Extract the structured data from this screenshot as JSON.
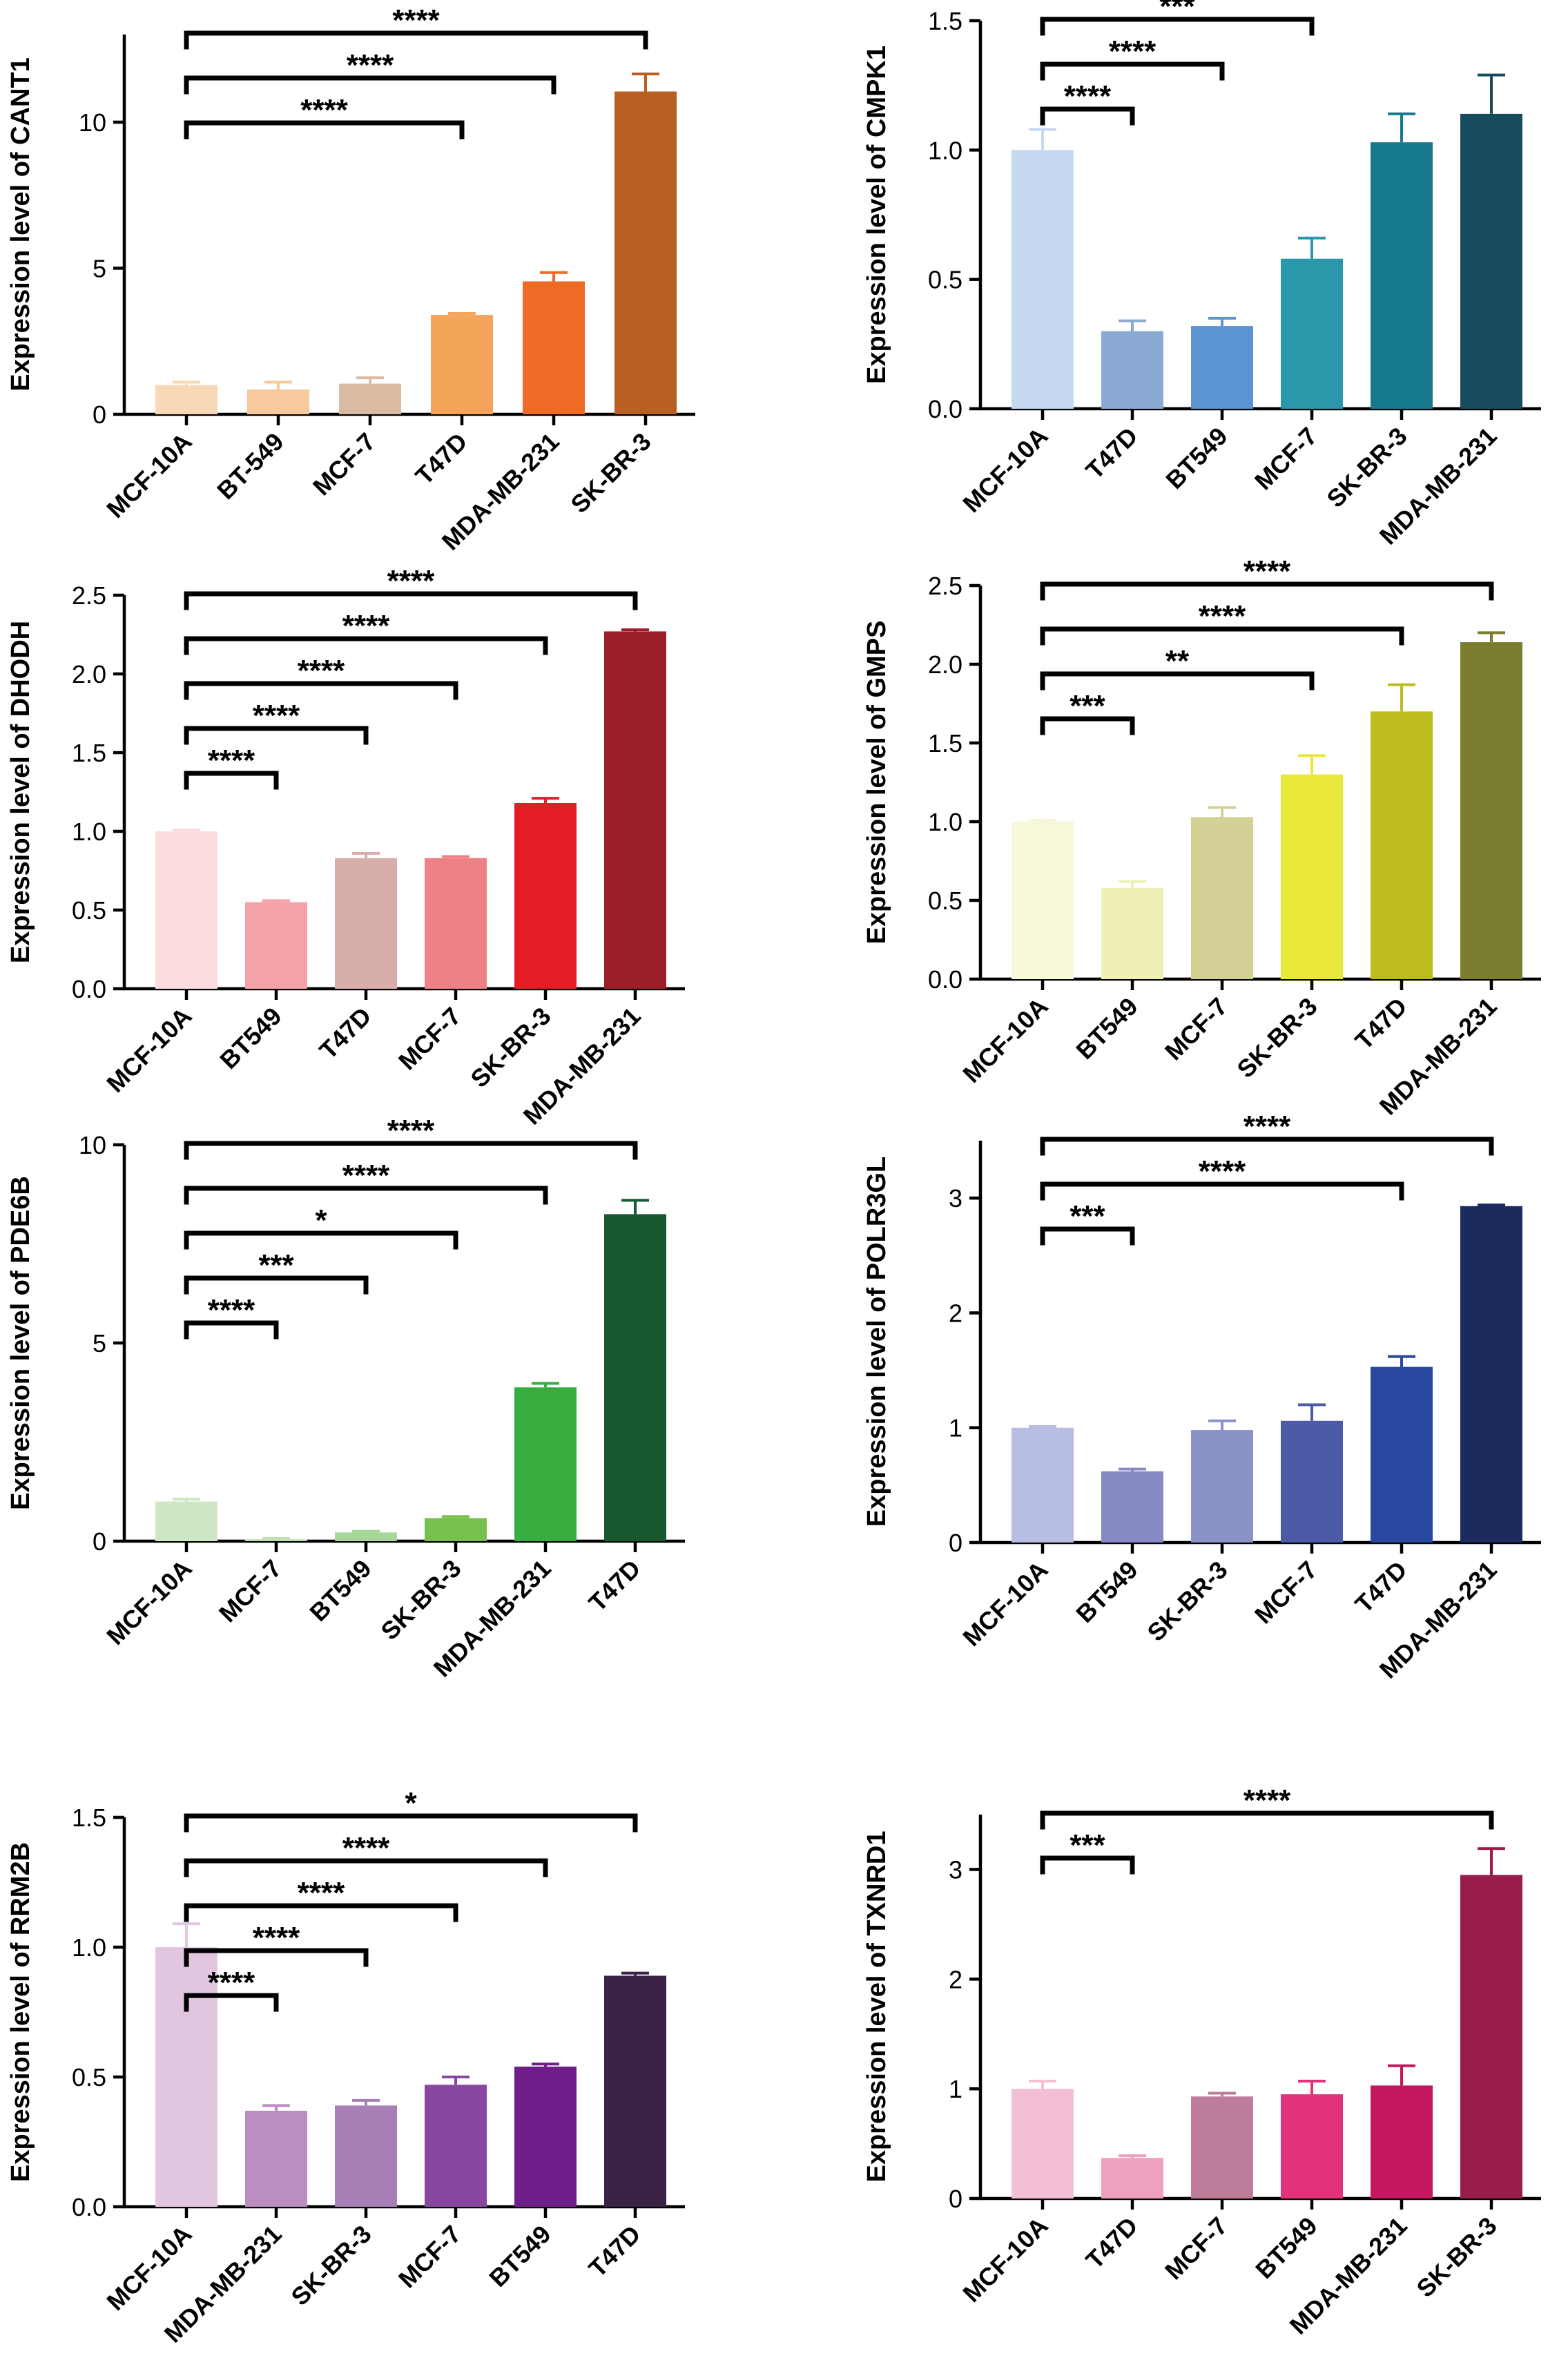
{
  "chart_data": [
    {
      "type": "bar",
      "ylabel": "Expression level of CANT1",
      "categories": [
        "MCF-10A",
        "BT-549",
        "MCF-7",
        "T47D",
        "MDA-MB-231",
        "SK-BR-3"
      ],
      "values": [
        1.0,
        0.85,
        1.05,
        3.4,
        4.55,
        11.05
      ],
      "errors": [
        0.1,
        0.25,
        0.2,
        0.05,
        0.3,
        0.6
      ],
      "colors": [
        "#f9d8b8",
        "#f7c99c",
        "#d9bba3",
        "#f4a55a",
        "#ee6a25",
        "#b85f24"
      ],
      "ylim": [
        0,
        13
      ],
      "yticks": [
        0,
        5,
        10
      ],
      "ytick_labels": [
        "0",
        "5",
        "10"
      ],
      "comparisons": [
        {
          "from": 0,
          "to": 3,
          "label": "****"
        },
        {
          "from": 0,
          "to": 4,
          "label": "****"
        },
        {
          "from": 0,
          "to": 5,
          "label": "****"
        }
      ]
    },
    {
      "type": "bar",
      "ylabel": "Expression level of CMPK1",
      "categories": [
        "MCF-10A",
        "T47D",
        "BT549",
        "MCF-7",
        "SK-BR-3",
        "MDA-MB-231"
      ],
      "values": [
        1.0,
        0.3,
        0.32,
        0.58,
        1.03,
        1.14
      ],
      "errors": [
        0.08,
        0.04,
        0.03,
        0.08,
        0.11,
        0.15
      ],
      "colors": [
        "#c6d8f0",
        "#8aaad3",
        "#5b94d0",
        "#2a97aa",
        "#177a8c",
        "#174c5e"
      ],
      "ylim": [
        0,
        1.5
      ],
      "yticks": [
        0,
        0.5,
        1.0,
        1.5
      ],
      "ytick_labels": [
        "0.0",
        "0.5",
        "1.0",
        "1.5"
      ],
      "comparisons": [
        {
          "from": 0,
          "to": 1,
          "label": "****"
        },
        {
          "from": 0,
          "to": 2,
          "label": "****"
        },
        {
          "from": 0,
          "to": 3,
          "label": "***"
        }
      ]
    },
    {
      "type": "bar",
      "ylabel": "Expression level of DHODH",
      "categories": [
        "MCF-10A",
        "BT549",
        "T47D",
        "MCF-7",
        "SK-BR-3",
        "MDA-MB-231"
      ],
      "values": [
        1.0,
        0.55,
        0.83,
        0.83,
        1.18,
        2.27
      ],
      "errors": [
        0.01,
        0.01,
        0.03,
        0.01,
        0.03,
        0.01
      ],
      "colors": [
        "#fbdde0",
        "#f3a3a8",
        "#d8aeab",
        "#ee8185",
        "#e31d23",
        "#9b1f2a"
      ],
      "ylim": [
        0,
        2.5
      ],
      "yticks": [
        0,
        0.5,
        1.0,
        1.5,
        2.0,
        2.5
      ],
      "ytick_labels": [
        "0.0",
        "0.5",
        "1.0",
        "1.5",
        "2.0",
        "2.5"
      ],
      "comparisons": [
        {
          "from": 0,
          "to": 1,
          "label": "****"
        },
        {
          "from": 0,
          "to": 2,
          "label": "****"
        },
        {
          "from": 0,
          "to": 3,
          "label": "****"
        },
        {
          "from": 0,
          "to": 4,
          "label": "****"
        },
        {
          "from": 0,
          "to": 5,
          "label": "****"
        }
      ]
    },
    {
      "type": "bar",
      "ylabel": "Expression level of GMPS",
      "categories": [
        "MCF-10A",
        "BT549",
        "MCF-7",
        "SK-BR-3",
        "T47D",
        "MDA-MB-231"
      ],
      "values": [
        1.0,
        0.58,
        1.03,
        1.3,
        1.7,
        2.14
      ],
      "errors": [
        0.01,
        0.04,
        0.06,
        0.12,
        0.17,
        0.06
      ],
      "colors": [
        "#f7f7d9",
        "#eef0b4",
        "#d4d197",
        "#eae83a",
        "#bcbc1e",
        "#7c7e2f"
      ],
      "ylim": [
        0,
        2.5
      ],
      "yticks": [
        0,
        0.5,
        1.0,
        1.5,
        2.0,
        2.5
      ],
      "ytick_labels": [
        "0.0",
        "0.5",
        "1.0",
        "1.5",
        "2.0",
        "2.5"
      ],
      "comparisons": [
        {
          "from": 0,
          "to": 1,
          "label": "***"
        },
        {
          "from": 0,
          "to": 3,
          "label": "**"
        },
        {
          "from": 0,
          "to": 4,
          "label": "****"
        },
        {
          "from": 0,
          "to": 5,
          "label": "****"
        }
      ]
    },
    {
      "type": "bar",
      "ylabel": "Expression level of PDE6B",
      "categories": [
        "MCF-10A",
        "MCF-7",
        "BT549",
        "SK-BR-3",
        "MDA-MB-231",
        "T47D"
      ],
      "values": [
        1.0,
        0.05,
        0.22,
        0.58,
        3.88,
        8.25
      ],
      "errors": [
        0.06,
        0.02,
        0.03,
        0.04,
        0.1,
        0.35
      ],
      "colors": [
        "#cfe7c4",
        "#bfe2b3",
        "#a6d69a",
        "#78c04e",
        "#36ad3e",
        "#175a31"
      ],
      "ylim": [
        0,
        10
      ],
      "yticks": [
        0,
        5,
        10
      ],
      "ytick_labels": [
        "0",
        "5",
        "10"
      ],
      "comparisons": [
        {
          "from": 0,
          "to": 1,
          "label": "****"
        },
        {
          "from": 0,
          "to": 2,
          "label": "***"
        },
        {
          "from": 0,
          "to": 3,
          "label": "*"
        },
        {
          "from": 0,
          "to": 4,
          "label": "****"
        },
        {
          "from": 0,
          "to": 5,
          "label": "****"
        }
      ]
    },
    {
      "type": "bar",
      "ylabel": "Expression level of POLR3GL",
      "categories": [
        "MCF-10A",
        "BT549",
        "SK-BR-3",
        "MCF-7",
        "T47D",
        "MDA-MB-231"
      ],
      "values": [
        1.0,
        0.62,
        0.98,
        1.06,
        1.53,
        2.93
      ],
      "errors": [
        0.01,
        0.02,
        0.08,
        0.14,
        0.09,
        0.01
      ],
      "colors": [
        "#b8bde3",
        "#8789c5",
        "#8a93c6",
        "#4b5ba8",
        "#2848a0",
        "#1d2a5e"
      ],
      "ylim": [
        0,
        3.5
      ],
      "yticks": [
        0,
        1,
        2,
        3
      ],
      "ytick_labels": [
        "0",
        "1",
        "2",
        "3"
      ],
      "comparisons": [
        {
          "from": 0,
          "to": 1,
          "label": "***"
        },
        {
          "from": 0,
          "to": 4,
          "label": "****"
        },
        {
          "from": 0,
          "to": 5,
          "label": "****"
        }
      ]
    },
    {
      "type": "bar",
      "ylabel": "Expression level of RRM2B",
      "categories": [
        "MCF-10A",
        "MDA-MB-231",
        "SK-BR-3",
        "MCF-7",
        "BT549",
        "T47D"
      ],
      "values": [
        1.0,
        0.37,
        0.39,
        0.47,
        0.54,
        0.89
      ],
      "errors": [
        0.09,
        0.02,
        0.02,
        0.03,
        0.01,
        0.01
      ],
      "colors": [
        "#e2c6e0",
        "#bb8dc1",
        "#a87eb6",
        "#8746a0",
        "#6d1e88",
        "#3b2348"
      ],
      "ylim": [
        0,
        1.5
      ],
      "yticks": [
        0,
        0.5,
        1.0,
        1.5
      ],
      "ytick_labels": [
        "0.0",
        "0.5",
        "1.0",
        "1.5"
      ],
      "comparisons": [
        {
          "from": 0,
          "to": 1,
          "label": "****"
        },
        {
          "from": 0,
          "to": 2,
          "label": "****"
        },
        {
          "from": 0,
          "to": 3,
          "label": "****"
        },
        {
          "from": 0,
          "to": 4,
          "label": "****"
        },
        {
          "from": 0,
          "to": 5,
          "label": "*"
        }
      ]
    },
    {
      "type": "bar",
      "ylabel": "Expression level of TXNRD1",
      "categories": [
        "MCF-10A",
        "T47D",
        "MCF-7",
        "BT549",
        "MDA-MB-231",
        "SK-BR-3"
      ],
      "values": [
        1.0,
        0.37,
        0.93,
        0.95,
        1.03,
        2.95
      ],
      "errors": [
        0.07,
        0.02,
        0.03,
        0.12,
        0.18,
        0.24
      ],
      "colors": [
        "#f3bfd4",
        "#ef9fc0",
        "#bd7c9a",
        "#e2327a",
        "#c31860",
        "#981c4b"
      ],
      "ylim": [
        0,
        3.5
      ],
      "yticks": [
        0,
        1,
        2,
        3
      ],
      "ytick_labels": [
        "0",
        "1",
        "2",
        "3"
      ],
      "comparisons": [
        {
          "from": 0,
          "to": 1,
          "label": "***"
        },
        {
          "from": 0,
          "to": 5,
          "label": "****"
        }
      ]
    }
  ]
}
